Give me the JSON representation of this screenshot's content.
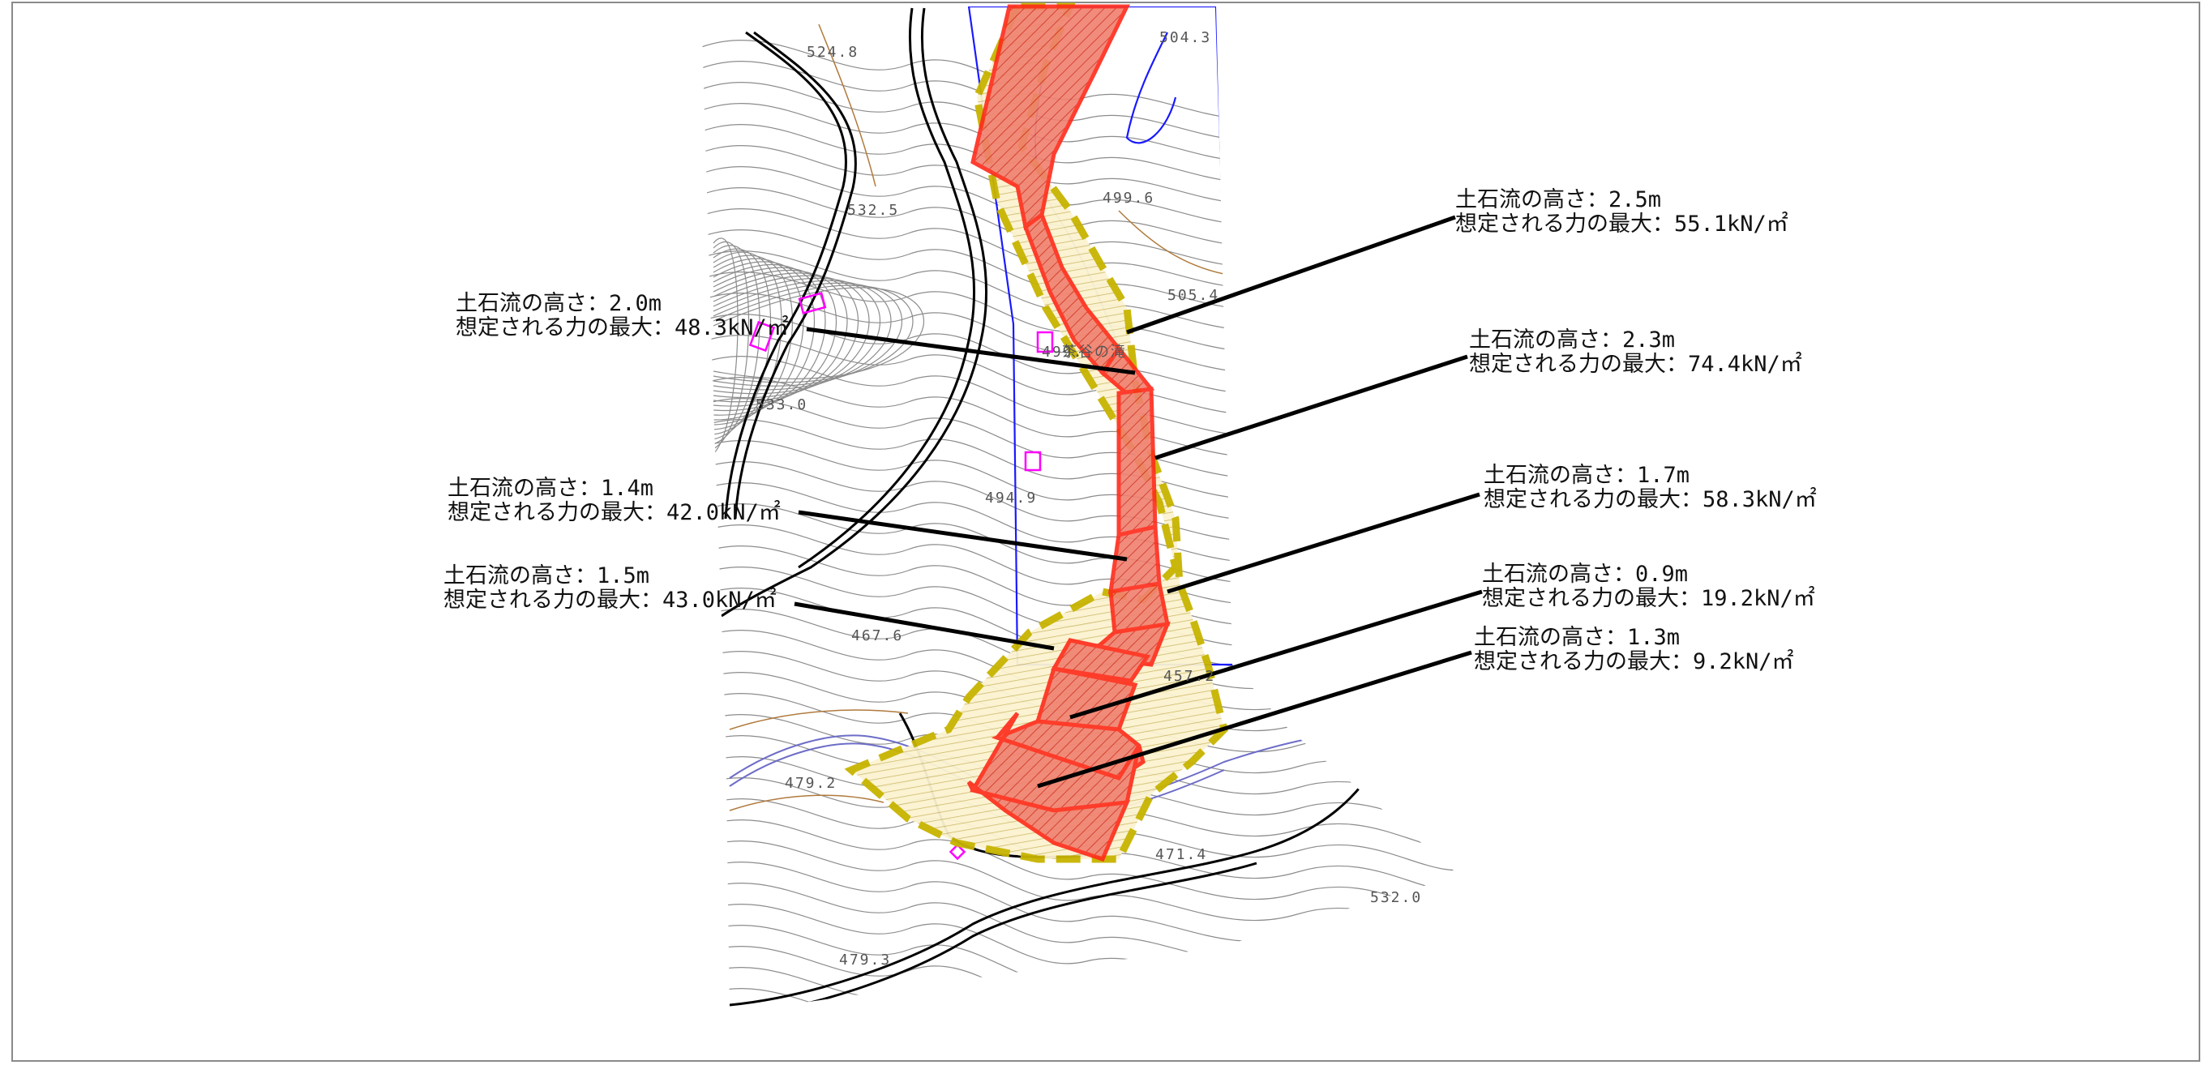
{
  "map": {
    "zones": {
      "red_zone_color": "#ff2a1a",
      "yellow_zone_color": "#c8b400",
      "boundary_color": "#1a1aff",
      "building_color": "#ff00ff"
    },
    "elevation_labels": [
      {
        "id": "e1",
        "text": "524.8"
      },
      {
        "id": "e2",
        "text": "504.3"
      },
      {
        "id": "e3",
        "text": "532.5"
      },
      {
        "id": "e4",
        "text": "499.6"
      },
      {
        "id": "e5",
        "text": "505.4"
      },
      {
        "id": "e6",
        "text": "499."
      },
      {
        "id": "e7",
        "text": "533.0"
      },
      {
        "id": "e8",
        "text": "494.9"
      },
      {
        "id": "e9",
        "text": "467.6"
      },
      {
        "id": "e10",
        "text": "457.2"
      },
      {
        "id": "e11",
        "text": "479.2"
      },
      {
        "id": "e12",
        "text": "471.4"
      },
      {
        "id": "e13",
        "text": "532.0"
      },
      {
        "id": "e14",
        "text": "479.3"
      }
    ],
    "stream_label": "茶谷の滝"
  },
  "callouts": [
    {
      "id": "c1",
      "height_label": "土石流の高さ：2.5m",
      "force_label": "想定される力の最大：55.1kN/㎡"
    },
    {
      "id": "c2",
      "height_label": "土石流の高さ：2.0m",
      "force_label": "想定される力の最大：48.3kN/㎡"
    },
    {
      "id": "c3",
      "height_label": "土石流の高さ：2.3m",
      "force_label": "想定される力の最大：74.4kN/㎡"
    },
    {
      "id": "c4",
      "height_label": "土石流の高さ：1.7m",
      "force_label": "想定される力の最大：58.3kN/㎡"
    },
    {
      "id": "c5",
      "height_label": "土石流の高さ：1.4m",
      "force_label": "想定される力の最大：42.0kN/㎡"
    },
    {
      "id": "c6",
      "height_label": "土石流の高さ：1.5m",
      "force_label": "想定される力の最大：43.0kN/㎡"
    },
    {
      "id": "c7",
      "height_label": "土石流の高さ：0.9m",
      "force_label": "想定される力の最大：19.2kN/㎡"
    },
    {
      "id": "c8",
      "height_label": "土石流の高さ：1.3m",
      "force_label": "想定される力の最大：9.2kN/㎡"
    }
  ]
}
